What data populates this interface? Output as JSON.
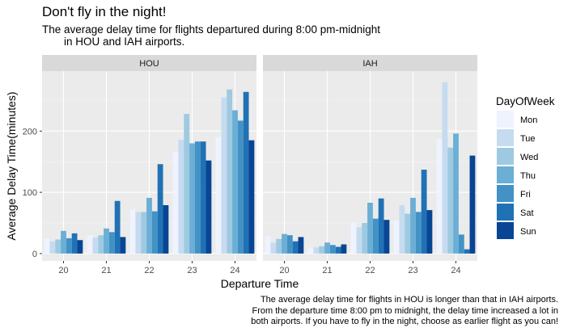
{
  "title": "Don't fly in the night!",
  "subtitle_line1": "The average delay time for flights departured during 8:00 pm-midnight",
  "subtitle_line2": "in HOU and IAH airports.",
  "caption_lines": [
    "The average delay time for flights in HOU is longer than that in IAH airports.",
    "From the departure time 8:00 pm to midnight, the delay time increased a lot in",
    "both airports. If you have to fly in the night, choose as earlier flight as you can!"
  ],
  "chart_data": {
    "type": "bar",
    "facets": [
      "HOU",
      "IAH"
    ],
    "categories": [
      "20",
      "21",
      "22",
      "23",
      "24"
    ],
    "xlabel": "Departure Time",
    "ylabel": "Average Delay Time(minutes)",
    "ylim": [
      -12,
      298
    ],
    "yticks": [
      0,
      100,
      200
    ],
    "grid": true,
    "legend": {
      "title": "DayOfWeek",
      "position": "right"
    },
    "colors": [
      "#eff3ff",
      "#c6dbef",
      "#9ecae1",
      "#6baed6",
      "#4292c6",
      "#2171b5",
      "#084594"
    ],
    "series": [
      {
        "name": "Mon",
        "HOU": [
          25,
          30,
          72,
          166,
          190
        ],
        "IAH": [
          28,
          10,
          50,
          54,
          187
        ]
      },
      {
        "name": "Tue",
        "HOU": [
          20,
          26,
          68,
          186,
          255
        ],
        "IAH": [
          18,
          10,
          43,
          79,
          280
        ]
      },
      {
        "name": "Wed",
        "HOU": [
          23,
          30,
          68,
          228,
          268
        ],
        "IAH": [
          24,
          12,
          50,
          65,
          173
        ]
      },
      {
        "name": "Thu",
        "HOU": [
          37,
          41,
          91,
          180,
          234
        ],
        "IAH": [
          32,
          18,
          83,
          91,
          196
        ]
      },
      {
        "name": "Fri",
        "HOU": [
          25,
          35,
          69,
          183,
          217
        ],
        "IAH": [
          30,
          14,
          57,
          68,
          31
        ]
      },
      {
        "name": "Sat",
        "HOU": [
          33,
          86,
          146,
          183,
          264
        ],
        "IAH": [
          20,
          11,
          90,
          137,
          7
        ]
      },
      {
        "name": "Sun",
        "HOU": [
          22,
          27,
          79,
          152,
          185
        ],
        "IAH": [
          27,
          15,
          55,
          71,
          160
        ]
      }
    ]
  }
}
